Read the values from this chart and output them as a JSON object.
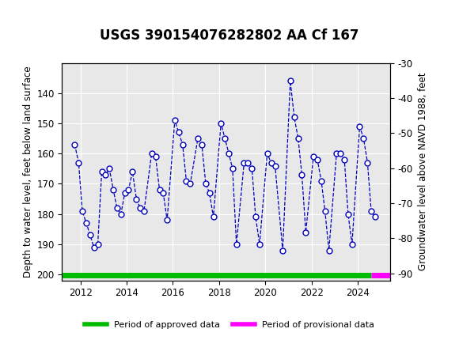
{
  "title": "USGS 390154076282802 AA Cf 167",
  "ylabel_left": "Depth to water level, feet below land surface",
  "ylabel_right": "Groundwater level above NAVD 1988, feet",
  "ylim_left": [
    130,
    202
  ],
  "ylim_right": [
    -30,
    -92
  ],
  "yticks_left": [
    140,
    150,
    160,
    170,
    180,
    190,
    200
  ],
  "yticks_right": [
    -30,
    -40,
    -50,
    -60,
    -70,
    -80,
    -90
  ],
  "xlim": [
    2011.2,
    2025.4
  ],
  "xticks": [
    2012,
    2014,
    2016,
    2018,
    2020,
    2022,
    2024
  ],
  "header_color": "#006633",
  "plot_bg_color": "#e8e8e8",
  "grid_color": "#ffffff",
  "line_color": "#0000bb",
  "marker_facecolor": "#ffffff",
  "marker_edgecolor": "#0000bb",
  "approved_color": "#00bb00",
  "provisional_color": "#ff00ff",
  "title_fontsize": 12,
  "axis_label_fontsize": 8.5,
  "tick_fontsize": 8.5,
  "data_x": [
    2011.75,
    2011.92,
    2012.08,
    2012.25,
    2012.42,
    2012.58,
    2012.75,
    2012.92,
    2013.08,
    2013.25,
    2013.42,
    2013.58,
    2013.75,
    2013.92,
    2014.08,
    2014.25,
    2014.42,
    2014.58,
    2014.75,
    2015.08,
    2015.25,
    2015.42,
    2015.58,
    2015.75,
    2016.08,
    2016.25,
    2016.42,
    2016.58,
    2016.75,
    2017.08,
    2017.25,
    2017.42,
    2017.58,
    2017.75,
    2018.08,
    2018.25,
    2018.42,
    2018.58,
    2018.75,
    2019.08,
    2019.25,
    2019.42,
    2019.58,
    2019.75,
    2020.08,
    2020.25,
    2020.42,
    2020.75,
    2021.08,
    2021.25,
    2021.42,
    2021.58,
    2021.75,
    2022.08,
    2022.25,
    2022.42,
    2022.58,
    2022.75,
    2023.08,
    2023.25,
    2023.42,
    2023.58,
    2023.75,
    2024.08,
    2024.25,
    2024.42,
    2024.58,
    2024.75
  ],
  "data_y": [
    157,
    163,
    179,
    183,
    187,
    191,
    190,
    166,
    167,
    165,
    172,
    178,
    180,
    173,
    172,
    166,
    175,
    178,
    179,
    160,
    161,
    172,
    173,
    182,
    149,
    153,
    157,
    169,
    170,
    155,
    157,
    170,
    173,
    181,
    150,
    155,
    160,
    165,
    190,
    163,
    163,
    165,
    181,
    190,
    160,
    163,
    164,
    192,
    136,
    148,
    155,
    167,
    186,
    161,
    162,
    169,
    179,
    192,
    160,
    160,
    162,
    180,
    190,
    151,
    155,
    163,
    179,
    181
  ],
  "approved_x_start": 2011.2,
  "approved_x_end": 2024.58,
  "provisional_x_start": 2024.58,
  "provisional_x_end": 2025.4
}
